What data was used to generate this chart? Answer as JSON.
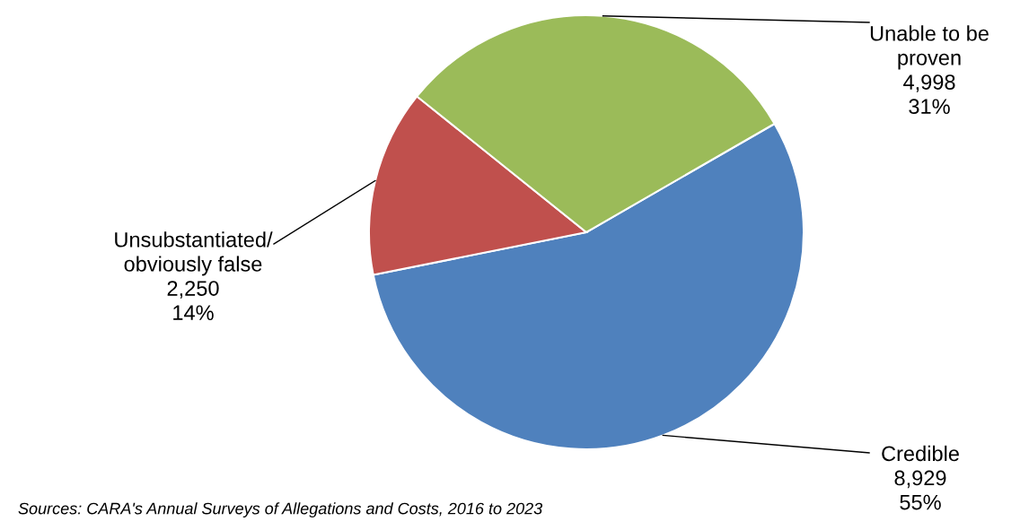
{
  "chart_data": {
    "type": "pie",
    "categories": [
      "Credible",
      "Unsubstantiated/\nobviously false",
      "Unable to be\nproven"
    ],
    "values": [
      8929,
      2250,
      4998
    ],
    "colors": [
      "#4f81bd",
      "#c0504d",
      "#9bbb59"
    ],
    "value_labels": [
      "8,929\n55%",
      "2,250\n14%",
      "4,998\n31%"
    ],
    "annotations": [
      "Sources: CARA's Annual Surveys of Allegations and Costs, 2016 to 2023"
    ]
  }
}
